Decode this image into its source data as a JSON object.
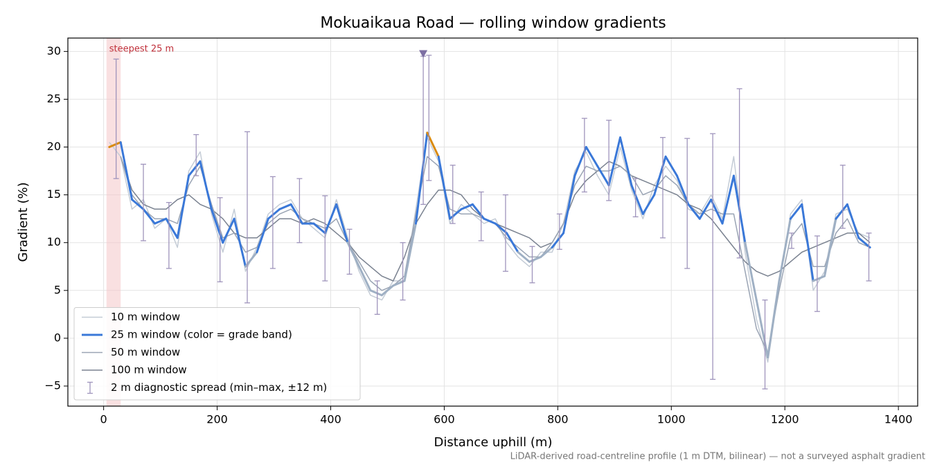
{
  "chart_data": {
    "type": "line",
    "title": "Mokuaikaua Road — rolling window gradients",
    "xlabel": "Distance uphill (m)",
    "ylabel": "Gradient (%)",
    "footnote": "LiDAR-derived road-centreline profile (1 m DTM, bilinear) — not a surveyed asphalt gradient",
    "xlim": [
      -63,
      1434
    ],
    "ylim": [
      -7.1,
      31.4
    ],
    "xticks": [
      0,
      200,
      400,
      600,
      800,
      1000,
      1200,
      1400
    ],
    "yticks": [
      {
        "value": -5,
        "label": "−5"
      },
      0,
      5,
      10,
      15,
      20,
      25,
      30
    ],
    "grid": true,
    "legend": "lower left",
    "x": [
      10,
      30,
      50,
      70,
      90,
      110,
      130,
      150,
      170,
      190,
      210,
      230,
      250,
      270,
      290,
      310,
      330,
      350,
      370,
      390,
      410,
      430,
      450,
      470,
      490,
      510,
      530,
      550,
      570,
      590,
      610,
      630,
      650,
      670,
      690,
      710,
      730,
      750,
      770,
      790,
      810,
      830,
      850,
      870,
      890,
      910,
      930,
      950,
      970,
      990,
      1010,
      1030,
      1050,
      1070,
      1090,
      1110,
      1130,
      1150,
      1170,
      1190,
      1210,
      1230,
      1250,
      1270,
      1290,
      1310,
      1330,
      1350
    ],
    "series": [
      {
        "name": "10 m window",
        "color": "#c4ccd6",
        "width": 1.5,
        "values": [
          20.5,
          19,
          13.5,
          14.5,
          11.5,
          12.5,
          9.5,
          17.5,
          19.5,
          13,
          9,
          13.5,
          7,
          9.5,
          13,
          14,
          14.5,
          12.5,
          11.5,
          10.5,
          14.5,
          10.5,
          7,
          4.5,
          4,
          6,
          6,
          13.5,
          21,
          18.5,
          12,
          14,
          13,
          12,
          12.5,
          10,
          8.5,
          7.5,
          9,
          9,
          12,
          17.5,
          19.5,
          17,
          15,
          20,
          15.5,
          12.5,
          16,
          18,
          16.5,
          13.5,
          13,
          15,
          12.5,
          19,
          9,
          2,
          -2.5,
          5.5,
          13,
          14.5,
          5,
          7,
          13,
          13.5,
          11,
          10.5
        ]
      },
      {
        "name": "25 m window (color = grade band)",
        "color": "#3a78d8",
        "width": 3,
        "band_edges": [
          10,
          20
        ],
        "band_colors": [
          "#9fb0c4",
          "#3a78d8",
          "#d98a0e"
        ],
        "values": [
          20,
          20.5,
          14.5,
          13.5,
          12,
          12.5,
          10.5,
          17,
          18.5,
          13.5,
          10,
          12.5,
          7.5,
          9,
          12.5,
          13.5,
          14,
          12,
          12,
          11,
          14,
          10,
          7.5,
          5,
          4.5,
          5.5,
          6,
          12,
          21.5,
          19,
          12.5,
          13.5,
          14,
          12.5,
          12,
          11,
          9,
          8,
          8.5,
          9.5,
          11,
          17,
          20,
          18,
          16,
          21,
          16,
          13,
          15,
          19,
          17,
          14,
          12.5,
          14.5,
          12,
          17,
          10,
          4,
          -2,
          6,
          12.5,
          14,
          6,
          6.5,
          12.5,
          14,
          10.5,
          9.5
        ]
      },
      {
        "name": "50 m window",
        "color": "#9aa4b4",
        "width": 1.5,
        "values": [
          null,
          19,
          15,
          13.5,
          12.5,
          12.5,
          12,
          16,
          18,
          14,
          10.5,
          11,
          9,
          9.5,
          12,
          13,
          13.5,
          12.5,
          12,
          11.5,
          12.5,
          10,
          8,
          6,
          5,
          5.5,
          6.5,
          13,
          19,
          18,
          13.5,
          13,
          13,
          12.5,
          12,
          10.5,
          9.5,
          8.5,
          8.5,
          10,
          12,
          16,
          18,
          17.5,
          17.5,
          18,
          17,
          15,
          15.5,
          17,
          16,
          14,
          13,
          13.5,
          13,
          13,
          7,
          1,
          -1.5,
          5,
          10.5,
          12,
          7.5,
          7.5,
          11,
          12.5,
          10,
          9.5
        ]
      },
      {
        "name": "100 m window",
        "color": "#7a8290",
        "width": 1.5,
        "values": [
          null,
          19,
          15.5,
          14,
          13.5,
          13.5,
          14.5,
          15,
          14,
          13.5,
          12.5,
          11,
          10.5,
          10.5,
          11.5,
          12.5,
          12.5,
          12,
          12.5,
          12,
          11,
          10,
          8.5,
          7.5,
          6.5,
          6,
          8.5,
          12,
          14,
          15.5,
          15.5,
          15,
          13.5,
          12.5,
          12,
          11.5,
          11,
          10.5,
          9.5,
          10,
          12,
          15,
          16.5,
          17.5,
          18.5,
          18,
          17,
          16.5,
          16,
          15.5,
          15,
          14,
          13.5,
          12.5,
          11,
          9.5,
          8,
          7,
          6.5,
          7,
          8,
          9,
          9.5,
          10,
          10.5,
          11,
          11,
          10
        ]
      }
    ],
    "errorbars": {
      "name": "2 m diagnostic spread (min–max, ±12 m)",
      "color": "#9f94bc",
      "x": [
        22,
        70,
        115,
        163,
        205,
        253,
        298,
        345,
        390,
        433,
        482,
        527,
        563,
        573,
        615,
        665,
        708,
        755,
        803,
        847,
        890,
        937,
        985,
        1028,
        1073,
        1120,
        1165,
        1212,
        1257,
        1302,
        1348
      ],
      "low": [
        16.7,
        10.2,
        7.3,
        17,
        5.9,
        3.7,
        7.3,
        10,
        6,
        6.7,
        2.5,
        4,
        14,
        16.5,
        12,
        10.2,
        7,
        5.8,
        9.3,
        15.3,
        14.4,
        12.7,
        10.5,
        7.3,
        -4.3,
        8.4,
        -5.3,
        9.4,
        2.8,
        11.5,
        6
      ],
      "high": [
        29.2,
        18.2,
        14.2,
        21.3,
        14.7,
        21.6,
        16.9,
        16.7,
        14.9,
        11.4,
        6,
        10,
        29.5,
        29.6,
        18.1,
        15.3,
        15,
        9.6,
        13,
        23,
        22.8,
        16.7,
        21,
        20.9,
        21.4,
        26.1,
        4,
        11,
        10.7,
        18.1,
        11
      ]
    },
    "span": {
      "label": "steepest 25 m",
      "xmin": 5,
      "xmax": 30,
      "color": "#f4c6c8",
      "label_color": "#c0303a"
    },
    "marker": {
      "x": 563,
      "y": 29.7,
      "color": "#7d6fa3"
    }
  }
}
